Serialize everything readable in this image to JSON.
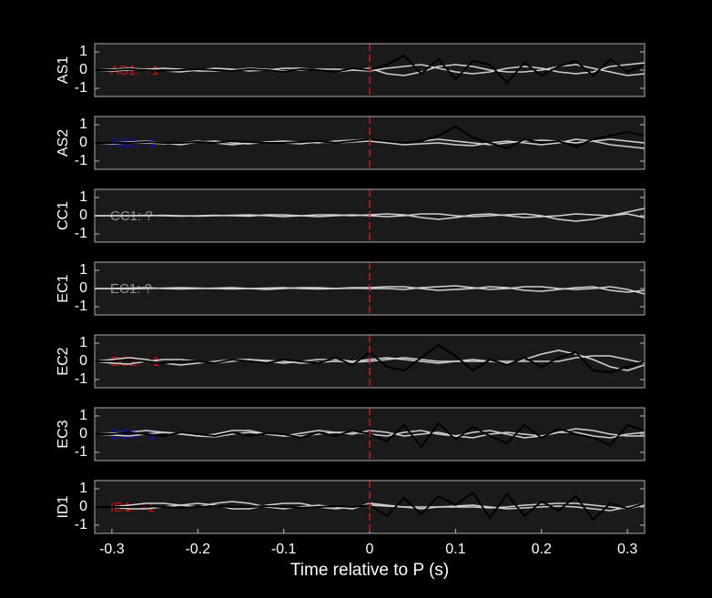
{
  "chart_data": [
    {
      "type": "line",
      "ylabel": "AS1",
      "annotation": "AS1: +1",
      "annotation_color": "#d01010",
      "vline": 0,
      "vline_color": "#e01010",
      "xlim": [
        -0.32,
        0.32
      ],
      "ylim": [
        -1.45,
        1.45
      ],
      "yticks": [
        -1,
        0,
        1
      ],
      "x": [
        -0.32,
        -0.3,
        -0.28,
        -0.26,
        -0.24,
        -0.22,
        -0.2,
        -0.18,
        -0.16,
        -0.14,
        -0.12,
        -0.1,
        -0.08,
        -0.06,
        -0.04,
        -0.02,
        0,
        0.02,
        0.04,
        0.06,
        0.08,
        0.1,
        0.12,
        0.14,
        0.16,
        0.18,
        0.2,
        0.22,
        0.24,
        0.26,
        0.28,
        0.3,
        0.32
      ],
      "series": [
        {
          "color": "#d0d0d0",
          "values": [
            0,
            0.05,
            0.1,
            0.05,
            -0.05,
            -0.1,
            0,
            0.1,
            0.05,
            -0.05,
            0,
            0.1,
            0.1,
            0,
            -0.1,
            0,
            0.1,
            -0.2,
            -0.3,
            -0.1,
            0.2,
            0.3,
            0.2,
            0,
            -0.1,
            -0.1,
            0,
            0.2,
            0.3,
            0.1,
            -0.1,
            -0.3,
            -0.2
          ]
        },
        {
          "color": "#d0d0d0",
          "values": [
            0,
            -0.05,
            0,
            0.05,
            0.1,
            0.05,
            -0.05,
            -0.05,
            0,
            0.1,
            0.05,
            -0.05,
            0,
            0.05,
            0.05,
            0,
            -0.05,
            0.1,
            0.2,
            0.3,
            0.1,
            -0.1,
            -0.2,
            -0.1,
            0.1,
            0.2,
            0.1,
            -0.1,
            -0.2,
            -0.1,
            0.2,
            0.3,
            0.4
          ]
        },
        {
          "color": "#000000",
          "values": [
            0,
            0,
            0.05,
            0,
            -0.05,
            0,
            0.05,
            0,
            -0.05,
            0.05,
            0,
            -0.1,
            0.05,
            0,
            -0.1,
            0.1,
            0,
            0.3,
            0.8,
            -0.2,
            0.6,
            -0.5,
            0.5,
            0.3,
            -0.7,
            0.4,
            -0.3,
            0.2,
            0.5,
            -0.3,
            0.6,
            -0.1,
            0.3
          ]
        }
      ]
    },
    {
      "type": "line",
      "ylabel": "AS2",
      "annotation": "AS2: -1",
      "annotation_color": "#1010c0",
      "vline": 0,
      "vline_color": "#e01010",
      "xlim": [
        -0.32,
        0.32
      ],
      "ylim": [
        -1.45,
        1.45
      ],
      "yticks": [
        -1,
        0,
        1
      ],
      "x": [
        -0.32,
        -0.3,
        -0.28,
        -0.26,
        -0.24,
        -0.22,
        -0.2,
        -0.18,
        -0.16,
        -0.14,
        -0.12,
        -0.1,
        -0.08,
        -0.06,
        -0.04,
        -0.02,
        0,
        0.02,
        0.04,
        0.06,
        0.08,
        0.1,
        0.12,
        0.14,
        0.16,
        0.18,
        0.2,
        0.22,
        0.24,
        0.26,
        0.28,
        0.3,
        0.32
      ],
      "series": [
        {
          "color": "#d0d0d0",
          "values": [
            0,
            0,
            0.05,
            0.1,
            0,
            -0.1,
            0.05,
            0.1,
            0,
            -0.05,
            0.05,
            0.1,
            0.05,
            0,
            0.1,
            0.15,
            0.2,
            0.1,
            0,
            0.1,
            0.2,
            0.1,
            0,
            -0.1,
            0,
            0.1,
            0.15,
            0.1,
            0,
            0.1,
            0.2,
            0.1,
            0
          ]
        },
        {
          "color": "#d0d0d0",
          "values": [
            0,
            -0.05,
            0,
            0,
            -0.05,
            0,
            0.1,
            0,
            -0.1,
            0,
            0.05,
            0,
            -0.05,
            0.05,
            0,
            0.05,
            0.1,
            0,
            -0.1,
            -0.05,
            0,
            -0.1,
            -0.15,
            0,
            0.1,
            0,
            -0.1,
            0,
            0.2,
            0.1,
            -0.1,
            -0.2,
            -0.3
          ]
        },
        {
          "color": "#000000",
          "values": [
            0,
            0,
            0,
            0.05,
            0,
            0,
            0.05,
            0,
            0.1,
            0.05,
            0,
            0,
            0.05,
            0.1,
            0,
            0.1,
            0.2,
            0.1,
            0,
            0.1,
            0.4,
            0.9,
            0.3,
            0,
            -0.3,
            0.2,
            0,
            0.1,
            -0.2,
            0.2,
            0.4,
            0.6,
            0.4
          ]
        }
      ]
    },
    {
      "type": "line",
      "ylabel": "CC1",
      "annotation": "CC1: ?",
      "annotation_color": "#909090",
      "vline": 0,
      "vline_color": "#e01010",
      "xlim": [
        -0.32,
        0.32
      ],
      "ylim": [
        -1.45,
        1.45
      ],
      "yticks": [
        -1,
        0,
        1
      ],
      "x": [
        -0.32,
        -0.3,
        -0.28,
        -0.26,
        -0.24,
        -0.22,
        -0.2,
        -0.18,
        -0.16,
        -0.14,
        -0.12,
        -0.1,
        -0.08,
        -0.06,
        -0.04,
        -0.02,
        0,
        0.02,
        0.04,
        0.06,
        0.08,
        0.1,
        0.12,
        0.14,
        0.16,
        0.18,
        0.2,
        0.22,
        0.24,
        0.26,
        0.28,
        0.3,
        0.32
      ],
      "series": [
        {
          "color": "#d0d0d0",
          "values": [
            0,
            0,
            0,
            0,
            0.02,
            0,
            -0.02,
            0,
            0.02,
            0.05,
            0,
            -0.05,
            0,
            0.05,
            0.05,
            0,
            0.05,
            0.1,
            0.05,
            -0.1,
            -0.2,
            -0.1,
            0.05,
            0.1,
            0,
            -0.1,
            -0.05,
            0,
            0.1,
            0.05,
            0,
            0.2,
            0.4
          ]
        },
        {
          "color": "#d0d0d0",
          "values": [
            0,
            0,
            0,
            0.02,
            0,
            -0.02,
            0,
            0.02,
            0,
            -0.02,
            0.05,
            0.05,
            0,
            -0.05,
            0,
            0.05,
            0,
            -0.05,
            0,
            0.1,
            0.1,
            0,
            -0.05,
            0,
            0.05,
            0.1,
            0,
            -0.2,
            -0.3,
            -0.2,
            0,
            0.1,
            -0.1
          ]
        }
      ]
    },
    {
      "type": "line",
      "ylabel": "EC1",
      "annotation": "EC1: ?",
      "annotation_color": "#909090",
      "vline": 0,
      "vline_color": "#e01010",
      "xlim": [
        -0.32,
        0.32
      ],
      "ylim": [
        -1.45,
        1.45
      ],
      "yticks": [
        -1,
        0,
        1
      ],
      "x": [
        -0.32,
        -0.3,
        -0.28,
        -0.26,
        -0.24,
        -0.22,
        -0.2,
        -0.18,
        -0.16,
        -0.14,
        -0.12,
        -0.1,
        -0.08,
        -0.06,
        -0.04,
        -0.02,
        0,
        0.02,
        0.04,
        0.06,
        0.08,
        0.1,
        0.12,
        0.14,
        0.16,
        0.18,
        0.2,
        0.22,
        0.24,
        0.26,
        0.28,
        0.3,
        0.32
      ],
      "series": [
        {
          "color": "#d0d0d0",
          "values": [
            0,
            0,
            0.02,
            0.05,
            0,
            -0.02,
            0,
            0.02,
            0.05,
            0,
            -0.05,
            0,
            0.05,
            0.05,
            0,
            0.05,
            0.05,
            0.1,
            0.1,
            0,
            -0.1,
            -0.05,
            0,
            0.1,
            0.05,
            -0.1,
            -0.15,
            -0.05,
            0.05,
            0.1,
            -0.1,
            -0.2,
            -0.1
          ]
        },
        {
          "color": "#d0d0d0",
          "values": [
            0,
            0,
            -0.02,
            0,
            0.02,
            0.05,
            0.02,
            0,
            -0.02,
            0,
            0.02,
            0.05,
            0,
            -0.02,
            0,
            0.02,
            0,
            0,
            -0.05,
            0.05,
            0.1,
            0.15,
            0.05,
            -0.05,
            0,
            0.1,
            0.1,
            0,
            -0.05,
            0,
            0.1,
            -0.05,
            -0.3
          ]
        }
      ]
    },
    {
      "type": "line",
      "ylabel": "EC2",
      "annotation": "EC2: +1",
      "annotation_color": "#d01010",
      "vline": 0,
      "vline_color": "#e01010",
      "xlim": [
        -0.32,
        0.32
      ],
      "ylim": [
        -1.45,
        1.45
      ],
      "yticks": [
        -1,
        0,
        1
      ],
      "x": [
        -0.32,
        -0.3,
        -0.28,
        -0.26,
        -0.24,
        -0.22,
        -0.2,
        -0.18,
        -0.16,
        -0.14,
        -0.12,
        -0.1,
        -0.08,
        -0.06,
        -0.04,
        -0.02,
        0,
        0.02,
        0.04,
        0.06,
        0.08,
        0.1,
        0.12,
        0.14,
        0.16,
        0.18,
        0.2,
        0.22,
        0.24,
        0.26,
        0.28,
        0.3,
        0.32
      ],
      "series": [
        {
          "color": "#d0d0d0",
          "values": [
            0,
            0.1,
            0.2,
            0.1,
            -0.1,
            -0.2,
            -0.1,
            0,
            0.1,
            0.1,
            0,
            -0.1,
            0,
            0.1,
            0.1,
            0,
            0.1,
            0.2,
            0.1,
            0,
            -0.1,
            0,
            0.1,
            0,
            -0.1,
            0.1,
            0.4,
            0.6,
            0.4,
            0.1,
            -0.3,
            -0.5,
            -0.2
          ]
        },
        {
          "color": "#d0d0d0",
          "values": [
            0,
            -0.1,
            -0.15,
            0,
            0.1,
            0.1,
            0,
            -0.1,
            0,
            0.1,
            0.05,
            0,
            -0.1,
            -0.05,
            0,
            -0.05,
            0,
            0.1,
            0.2,
            0.1,
            0,
            0,
            0,
            0,
            0,
            0,
            0,
            0,
            0.2,
            0.3,
            0.3,
            0.1,
            -0.1
          ]
        },
        {
          "color": "#000000",
          "values": [
            0,
            0,
            0.1,
            0,
            -0.1,
            0,
            0,
            -0.1,
            0.1,
            0,
            -0.1,
            0.1,
            0,
            -0.1,
            0.2,
            -0.2,
            0.5,
            -0.3,
            -0.5,
            0.2,
            0.9,
            0.3,
            -0.5,
            0.1,
            -0.2,
            0.2,
            -0.3,
            0.2,
            0.5,
            -0.5,
            -0.6,
            -0.3,
            0
          ]
        }
      ]
    },
    {
      "type": "line",
      "ylabel": "EC3",
      "annotation": "EC3: -1",
      "annotation_color": "#1010c0",
      "vline": 0,
      "vline_color": "#e01010",
      "xlim": [
        -0.32,
        0.32
      ],
      "ylim": [
        -1.45,
        1.45
      ],
      "yticks": [
        -1,
        0,
        1
      ],
      "x": [
        -0.32,
        -0.3,
        -0.28,
        -0.26,
        -0.24,
        -0.22,
        -0.2,
        -0.18,
        -0.16,
        -0.14,
        -0.12,
        -0.1,
        -0.08,
        -0.06,
        -0.04,
        -0.02,
        0,
        0.02,
        0.04,
        0.06,
        0.08,
        0.1,
        0.12,
        0.14,
        0.16,
        0.18,
        0.2,
        0.22,
        0.24,
        0.26,
        0.28,
        0.3,
        0.32
      ],
      "series": [
        {
          "color": "#d0d0d0",
          "values": [
            0,
            0.05,
            0.1,
            0.2,
            0.1,
            0,
            -0.1,
            0,
            0.2,
            0.2,
            0,
            -0.1,
            0.05,
            0.2,
            0.1,
            0,
            0.2,
            0.1,
            -0.1,
            0,
            0.1,
            -0.1,
            -0.2,
            0,
            0.1,
            0,
            -0.1,
            0.1,
            0.3,
            0.2,
            0,
            -0.1,
            -0.1
          ]
        },
        {
          "color": "#d0d0d0",
          "values": [
            0,
            -0.05,
            -0.1,
            0,
            0.1,
            0.05,
            -0.1,
            -0.15,
            0,
            0.1,
            0,
            -0.1,
            -0.1,
            0,
            0.1,
            0.1,
            0,
            -0.1,
            0.1,
            0.2,
            0,
            -0.1,
            0.1,
            0.2,
            0,
            -0.2,
            -0.1,
            0.1,
            0.1,
            -0.1,
            -0.2,
            0,
            0.1
          ]
        },
        {
          "color": "#000000",
          "values": [
            0,
            0,
            0.1,
            0,
            -0.1,
            0.1,
            0,
            -0.1,
            0.1,
            -0.1,
            0.05,
            0,
            -0.2,
            0.1,
            -0.1,
            0.2,
            0,
            -0.4,
            0.5,
            -0.7,
            0.6,
            -0.3,
            0.4,
            -0.1,
            -0.5,
            0.5,
            -0.2,
            0.3,
            0,
            -0.2,
            -0.6,
            0.5,
            0.2
          ]
        }
      ]
    },
    {
      "type": "line",
      "ylabel": "ID1",
      "annotation": "ID1: +1",
      "annotation_color": "#d01010",
      "vline": 0,
      "vline_color": "#e01010",
      "xlim": [
        -0.32,
        0.32
      ],
      "ylim": [
        -1.45,
        1.45
      ],
      "yticks": [
        -1,
        0,
        1
      ],
      "xticks": [
        -0.3,
        -0.2,
        -0.1,
        0,
        0.1,
        0.2,
        0.3
      ],
      "xlabel": "Time relative to P (s)",
      "x": [
        -0.32,
        -0.3,
        -0.28,
        -0.26,
        -0.24,
        -0.22,
        -0.2,
        -0.18,
        -0.16,
        -0.14,
        -0.12,
        -0.1,
        -0.08,
        -0.06,
        -0.04,
        -0.02,
        0,
        0.02,
        0.04,
        0.06,
        0.08,
        0.1,
        0.12,
        0.14,
        0.16,
        0.18,
        0.2,
        0.22,
        0.24,
        0.26,
        0.28,
        0.3,
        0.32
      ],
      "series": [
        {
          "color": "#d0d0d0",
          "values": [
            0,
            0,
            0.1,
            0.2,
            0.2,
            0.1,
            0,
            0.2,
            0.3,
            0.2,
            0,
            -0.1,
            0,
            0.1,
            0,
            -0.1,
            0.2,
            0.1,
            0,
            -0.1,
            0,
            0,
            0,
            -0.05,
            0,
            0.1,
            0.15,
            0.2,
            0.2,
            0.1,
            0,
            -0.1,
            0.1
          ]
        },
        {
          "color": "#d0d0d0",
          "values": [
            0,
            0,
            -0.1,
            -0.1,
            0,
            0.1,
            0.2,
            0.1,
            -0.1,
            -0.1,
            0.1,
            0.2,
            0.2,
            0,
            -0.1,
            0,
            0.1,
            0.05,
            0,
            0,
            0,
            0.05,
            0.1,
            0,
            -0.1,
            -0.05,
            0,
            0.05,
            0,
            -0.1,
            -0.2,
            0,
            0.2
          ]
        },
        {
          "color": "#000000",
          "values": [
            0,
            0,
            0,
            0.05,
            0,
            -0.05,
            0,
            0.05,
            0,
            0,
            0.05,
            0,
            -0.05,
            0,
            0.05,
            0,
            0.1,
            -0.5,
            0.5,
            -0.4,
            0.6,
            0.1,
            0.8,
            -0.6,
            0.7,
            -0.5,
            0.3,
            -0.2,
            0.6,
            -0.7,
            0.2,
            -0.1,
            0.2
          ]
        }
      ]
    }
  ]
}
